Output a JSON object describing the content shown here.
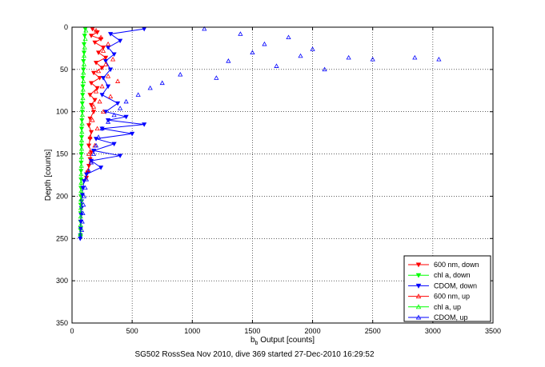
{
  "chart_data": {
    "type": "scatter",
    "title": "",
    "caption": "SG502 RossSea Nov 2010, dive 369 started 27-Dec-2010 16:29:52",
    "xlabel_main": "b",
    "xlabel_sub": "b",
    "xlabel_rest": " Output [counts]",
    "ylabel": "Depth [counts]",
    "xlim": [
      0,
      3500
    ],
    "ylim": [
      0,
      350
    ],
    "y_reversed": true,
    "grid": true,
    "xticks": [
      0,
      500,
      1000,
      1500,
      2000,
      2500,
      3000,
      3500
    ],
    "yticks": [
      0,
      50,
      100,
      150,
      200,
      250,
      300,
      350
    ],
    "legend_position": "bottom-right",
    "series": [
      {
        "name": "600 nm, down",
        "color": "#ff0000",
        "marker": "triangle-down",
        "line": true,
        "points": [
          [
            170,
            2
          ],
          [
            210,
            6
          ],
          [
            160,
            10
          ],
          [
            240,
            14
          ],
          [
            190,
            18
          ],
          [
            260,
            24
          ],
          [
            220,
            30
          ],
          [
            280,
            36
          ],
          [
            200,
            42
          ],
          [
            250,
            48
          ],
          [
            180,
            54
          ],
          [
            230,
            60
          ],
          [
            160,
            66
          ],
          [
            210,
            72
          ],
          [
            150,
            80
          ],
          [
            190,
            86
          ],
          [
            160,
            92
          ],
          [
            180,
            100
          ],
          [
            150,
            108
          ],
          [
            140,
            116
          ],
          [
            160,
            124
          ],
          [
            150,
            132
          ],
          [
            140,
            140
          ],
          [
            160,
            148
          ],
          [
            150,
            156
          ],
          [
            140,
            164
          ],
          [
            130,
            172
          ],
          [
            120,
            178
          ]
        ]
      },
      {
        "name": "chl a, down",
        "color": "#00ff00",
        "marker": "triangle-down",
        "line": true,
        "points": [
          [
            110,
            2
          ],
          [
            105,
            10
          ],
          [
            100,
            20
          ],
          [
            100,
            30
          ],
          [
            95,
            40
          ],
          [
            95,
            50
          ],
          [
            90,
            60
          ],
          [
            90,
            70
          ],
          [
            88,
            80
          ],
          [
            85,
            90
          ],
          [
            85,
            100
          ],
          [
            82,
            110
          ],
          [
            80,
            120
          ],
          [
            80,
            130
          ],
          [
            78,
            140
          ],
          [
            78,
            150
          ],
          [
            76,
            160
          ],
          [
            75,
            170
          ],
          [
            75,
            180
          ],
          [
            74,
            190
          ],
          [
            74,
            200
          ],
          [
            72,
            210
          ],
          [
            72,
            220
          ],
          [
            70,
            230
          ],
          [
            70,
            240
          ],
          [
            70,
            248
          ]
        ]
      },
      {
        "name": "CDOM, down",
        "color": "#0000ff",
        "marker": "triangle-down",
        "line": true,
        "points": [
          [
            600,
            2
          ],
          [
            320,
            8
          ],
          [
            400,
            16
          ],
          [
            300,
            24
          ],
          [
            350,
            32
          ],
          [
            280,
            40
          ],
          [
            320,
            50
          ],
          [
            260,
            60
          ],
          [
            300,
            70
          ],
          [
            250,
            80
          ],
          [
            380,
            90
          ],
          [
            280,
            100
          ],
          [
            450,
            106
          ],
          [
            300,
            110
          ],
          [
            600,
            115
          ],
          [
            250,
            120
          ],
          [
            500,
            126
          ],
          [
            200,
            132
          ],
          [
            350,
            138
          ],
          [
            180,
            146
          ],
          [
            400,
            152
          ],
          [
            160,
            158
          ],
          [
            240,
            166
          ],
          [
            120,
            174
          ],
          [
            100,
            182
          ],
          [
            90,
            190
          ],
          [
            85,
            198
          ],
          [
            80,
            206
          ],
          [
            78,
            214
          ],
          [
            76,
            222
          ],
          [
            74,
            230
          ],
          [
            72,
            238
          ],
          [
            70,
            246
          ],
          [
            68,
            250
          ]
        ]
      },
      {
        "name": "600 nm, up",
        "color": "#ff0000",
        "marker": "triangle-up",
        "line": false,
        "points": [
          [
            200,
            4
          ],
          [
            240,
            12
          ],
          [
            300,
            20
          ],
          [
            260,
            28
          ],
          [
            340,
            38
          ],
          [
            280,
            44
          ],
          [
            220,
            52
          ],
          [
            300,
            58
          ],
          [
            380,
            64
          ],
          [
            250,
            70
          ],
          [
            200,
            76
          ],
          [
            320,
            82
          ],
          [
            230,
            88
          ],
          [
            180,
            94
          ],
          [
            260,
            100
          ],
          [
            170,
            110
          ],
          [
            210,
            120
          ],
          [
            150,
            130
          ],
          [
            190,
            140
          ],
          [
            140,
            150
          ],
          [
            160,
            160
          ],
          [
            130,
            170
          ]
        ]
      },
      {
        "name": "chl a, up",
        "color": "#00ff00",
        "marker": "triangle-up",
        "line": false,
        "points": [
          [
            115,
            4
          ],
          [
            110,
            14
          ],
          [
            105,
            24
          ],
          [
            100,
            34
          ],
          [
            100,
            44
          ],
          [
            95,
            54
          ],
          [
            95,
            64
          ],
          [
            92,
            74
          ],
          [
            90,
            84
          ],
          [
            88,
            94
          ],
          [
            86,
            104
          ],
          [
            84,
            114
          ],
          [
            82,
            124
          ],
          [
            80,
            134
          ],
          [
            80,
            144
          ],
          [
            78,
            154
          ],
          [
            78,
            164
          ],
          [
            76,
            174
          ],
          [
            76,
            184
          ],
          [
            75,
            194
          ],
          [
            74,
            204
          ],
          [
            73,
            214
          ],
          [
            72,
            224
          ],
          [
            71,
            234
          ],
          [
            70,
            244
          ]
        ]
      },
      {
        "name": "CDOM, up",
        "color": "#0000ff",
        "marker": "triangle-up",
        "line": false,
        "points": [
          [
            1100,
            2
          ],
          [
            1400,
            8
          ],
          [
            1800,
            12
          ],
          [
            1600,
            20
          ],
          [
            2000,
            26
          ],
          [
            1500,
            30
          ],
          [
            1900,
            34
          ],
          [
            2300,
            36
          ],
          [
            2500,
            38
          ],
          [
            2850,
            36
          ],
          [
            3050,
            38
          ],
          [
            1300,
            40
          ],
          [
            1700,
            46
          ],
          [
            2100,
            50
          ],
          [
            900,
            56
          ],
          [
            1200,
            60
          ],
          [
            750,
            66
          ],
          [
            650,
            72
          ],
          [
            550,
            80
          ],
          [
            450,
            88
          ],
          [
            400,
            96
          ],
          [
            350,
            104
          ],
          [
            300,
            112
          ],
          [
            250,
            120
          ],
          [
            220,
            130
          ],
          [
            200,
            140
          ],
          [
            180,
            150
          ],
          [
            160,
            160
          ],
          [
            140,
            170
          ],
          [
            120,
            180
          ],
          [
            110,
            190
          ],
          [
            100,
            200
          ],
          [
            95,
            210
          ],
          [
            90,
            220
          ],
          [
            85,
            230
          ],
          [
            80,
            240
          ]
        ]
      }
    ]
  }
}
